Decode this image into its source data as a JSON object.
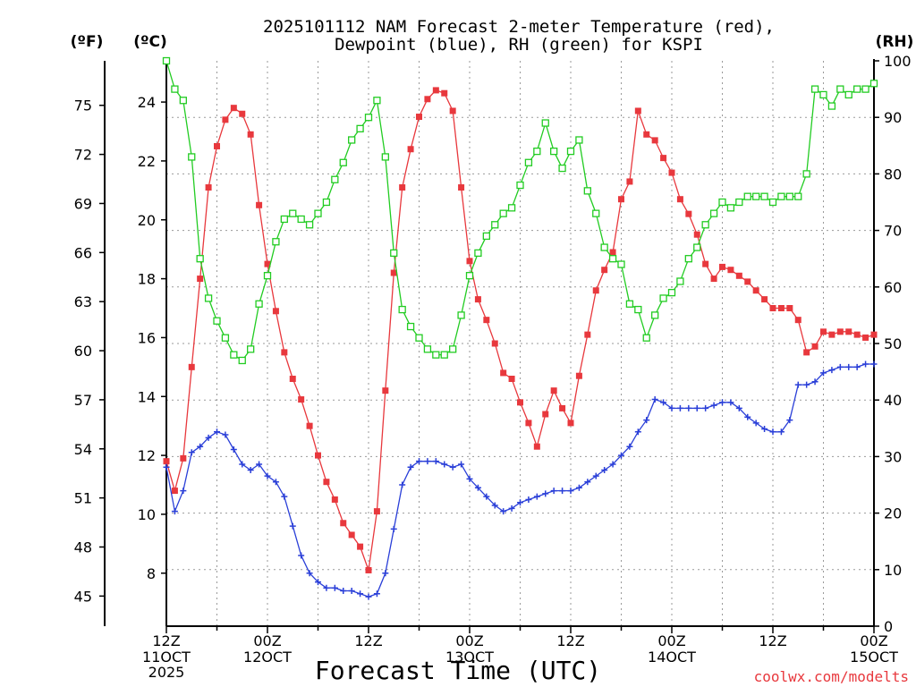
{
  "chart_data": {
    "type": "line",
    "title_line1": "2025101112 NAM Forecast 2-meter Temperature (red),",
    "title_line2": "Dewpoint (blue), RH (green) for KSPI",
    "xlabel": "Forecast Time (UTC)",
    "watermark": "coolwx.com/modelts",
    "left_axis_f_label": "(ºF)",
    "left_axis_c_label": "(ºC)",
    "right_axis_label": "(RH)",
    "x_hours_range": [
      0,
      84
    ],
    "c_range": [
      6.2,
      25.4
    ],
    "rh_range": [
      0,
      100
    ],
    "x_ticks": [
      {
        "hour": 0,
        "line1": "12Z",
        "line2": "11OCT",
        "line3": "2025"
      },
      {
        "hour": 12,
        "line1": "00Z",
        "line2": "12OCT",
        "line3": ""
      },
      {
        "hour": 24,
        "line1": "12Z",
        "line2": "",
        "line3": ""
      },
      {
        "hour": 36,
        "line1": "00Z",
        "line2": "13OCT",
        "line3": ""
      },
      {
        "hour": 48,
        "line1": "12Z",
        "line2": "",
        "line3": ""
      },
      {
        "hour": 60,
        "line1": "00Z",
        "line2": "14OCT",
        "line3": ""
      },
      {
        "hour": 72,
        "line1": "12Z",
        "line2": "",
        "line3": ""
      },
      {
        "hour": 84,
        "line1": "00Z",
        "line2": "15OCT",
        "line3": ""
      }
    ],
    "c_ticks": [
      8,
      10,
      12,
      14,
      16,
      18,
      20,
      22,
      24
    ],
    "f_ticks": [
      45,
      48,
      51,
      54,
      57,
      60,
      63,
      66,
      69,
      72,
      75
    ],
    "rh_ticks": [
      0,
      10,
      20,
      30,
      40,
      50,
      60,
      70,
      80,
      90,
      100
    ],
    "series": [
      {
        "name": "2-meter Temperature",
        "unit": "C",
        "color": "#e8383d",
        "marker": "filled-square",
        "values": [
          11.8,
          10.8,
          11.9,
          15.0,
          18.0,
          21.1,
          22.5,
          23.4,
          23.8,
          23.6,
          22.9,
          20.5,
          18.5,
          16.9,
          15.5,
          14.6,
          13.9,
          13.0,
          12.0,
          11.1,
          10.5,
          9.7,
          9.3,
          8.9,
          8.1,
          10.1,
          14.2,
          18.2,
          21.1,
          22.4,
          23.5,
          24.1,
          24.4,
          24.3,
          23.7,
          21.1,
          18.6,
          17.3,
          16.6,
          15.8,
          14.8,
          14.6,
          13.8,
          13.1,
          12.3,
          13.4,
          14.2,
          13.6,
          13.1,
          14.7,
          16.1,
          17.6,
          18.3,
          18.9,
          20.7,
          21.3,
          23.7,
          22.9,
          22.7,
          22.1,
          21.6,
          20.7,
          20.2,
          19.5,
          18.5,
          18.0,
          18.4,
          18.3,
          18.1,
          17.9,
          17.6,
          17.3,
          17.0,
          17.0,
          17.0,
          16.6,
          15.5,
          15.7,
          16.2,
          16.1,
          16.2,
          16.2,
          16.1,
          16.0,
          16.1
        ]
      },
      {
        "name": "Dewpoint",
        "unit": "C",
        "color": "#2a3fd8",
        "marker": "plus",
        "values": [
          11.6,
          10.1,
          10.8,
          12.1,
          12.3,
          12.6,
          12.8,
          12.7,
          12.2,
          11.7,
          11.5,
          11.7,
          11.3,
          11.1,
          10.6,
          9.6,
          8.6,
          8.0,
          7.7,
          7.5,
          7.5,
          7.4,
          7.4,
          7.3,
          7.2,
          7.3,
          8.0,
          9.5,
          11.0,
          11.6,
          11.8,
          11.8,
          11.8,
          11.7,
          11.6,
          11.7,
          11.2,
          10.9,
          10.6,
          10.3,
          10.1,
          10.2,
          10.4,
          10.5,
          10.6,
          10.7,
          10.8,
          10.8,
          10.8,
          10.9,
          11.1,
          11.3,
          11.5,
          11.7,
          12.0,
          12.3,
          12.8,
          13.2,
          13.9,
          13.8,
          13.6,
          13.6,
          13.6,
          13.6,
          13.6,
          13.7,
          13.8,
          13.8,
          13.6,
          13.3,
          13.1,
          12.9,
          12.8,
          12.8,
          13.2,
          14.4,
          14.4,
          14.5,
          14.8,
          14.9,
          15.0,
          15.0,
          15.0,
          15.1,
          15.1
        ]
      },
      {
        "name": "Relative Humidity",
        "unit": "RH",
        "color": "#22cc22",
        "marker": "open-square",
        "values": [
          100,
          95,
          93,
          83,
          65,
          58,
          54,
          51,
          48,
          47,
          49,
          57,
          62,
          68,
          72,
          73,
          72,
          71,
          73,
          75,
          79,
          82,
          86,
          88,
          90,
          93,
          83,
          66,
          56,
          53,
          51,
          49,
          48,
          48,
          49,
          55,
          62,
          66,
          69,
          71,
          73,
          74,
          78,
          82,
          84,
          89,
          84,
          81,
          84,
          86,
          77,
          73,
          67,
          65,
          64,
          57,
          56,
          51,
          55,
          58,
          59,
          61,
          65,
          67,
          71,
          73,
          75,
          74,
          75,
          76,
          76,
          76,
          75,
          76,
          76,
          76,
          80,
          95,
          94,
          92,
          95,
          94,
          95,
          95,
          96
        ]
      }
    ]
  }
}
